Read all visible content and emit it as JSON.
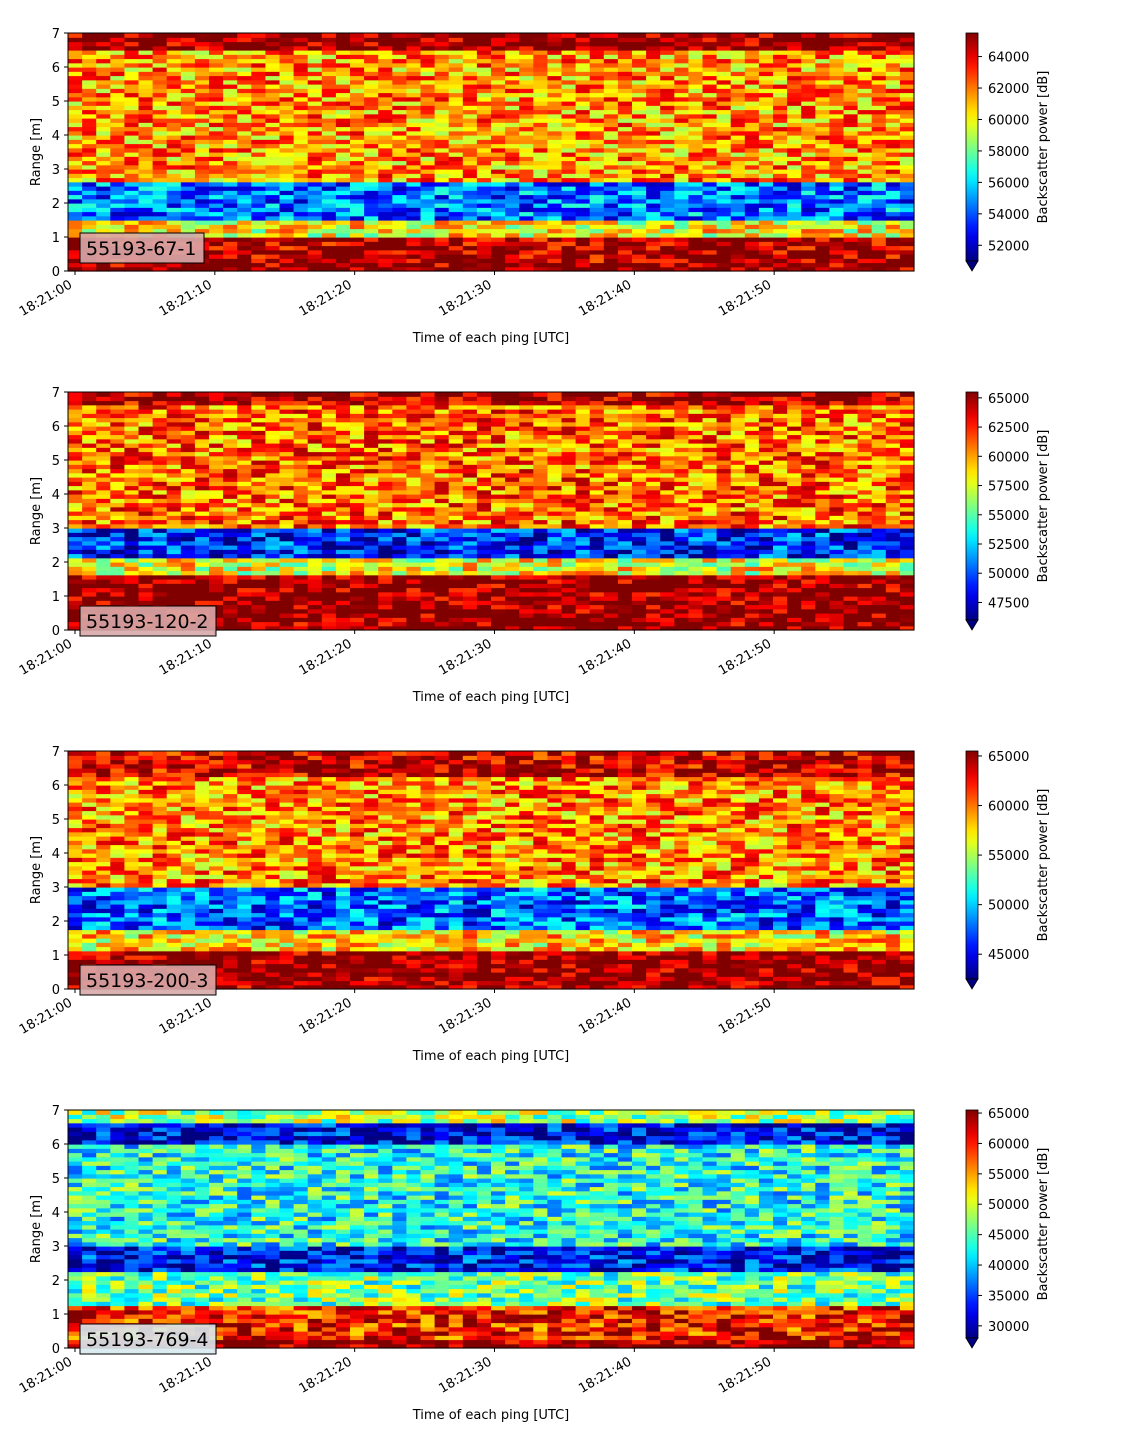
{
  "colormap": "jet",
  "chart_data": [
    {
      "type": "heatmap",
      "label_box": "55193-67-1",
      "label_box_color": "#d8a9a9",
      "xlabel": "Time of each ping [UTC]",
      "ylabel": "Range [m]",
      "colorbar_label": "Backscatter power [dB]",
      "x_range": [
        "18:21:00",
        "18:21:59"
      ],
      "xticks": [
        "18:21:00",
        "18:21:10",
        "18:21:20",
        "18:21:30",
        "18:21:40",
        "18:21:50"
      ],
      "ylim": [
        0,
        7
      ],
      "yticks": [
        "0",
        "1",
        "2",
        "3",
        "4",
        "5",
        "6",
        "7"
      ],
      "clim": [
        51000,
        65500
      ],
      "colorbar_ticks": [
        "52000",
        "54000",
        "56000",
        "58000",
        "60000",
        "62000",
        "64000"
      ],
      "colorbar_extend": "min",
      "range_profile": [
        {
          "range": [
            0.0,
            0.25
          ],
          "value": 65500
        },
        {
          "range": [
            0.25,
            1.0
          ],
          "value": 65000
        },
        {
          "range": [
            1.0,
            1.5
          ],
          "value": 60000
        },
        {
          "range": [
            1.5,
            2.6
          ],
          "value": 54500
        },
        {
          "range": [
            2.6,
            6.5
          ],
          "value": 61500
        },
        {
          "range": [
            6.5,
            7.0
          ],
          "value": 65500
        }
      ]
    },
    {
      "type": "heatmap",
      "label_box": "55193-120-2",
      "label_box_color": "#d8a9a9",
      "xlabel": "Time of each ping [UTC]",
      "ylabel": "Range [m]",
      "colorbar_label": "Backscatter power [dB]",
      "x_range": [
        "18:21:00",
        "18:21:59"
      ],
      "xticks": [
        "18:21:00",
        "18:21:10",
        "18:21:20",
        "18:21:30",
        "18:21:40",
        "18:21:50"
      ],
      "ylim": [
        0,
        7
      ],
      "yticks": [
        "0",
        "1",
        "2",
        "3",
        "4",
        "5",
        "6",
        "7"
      ],
      "clim": [
        46000,
        65500
      ],
      "colorbar_ticks": [
        "47500",
        "50000",
        "52500",
        "55000",
        "57500",
        "60000",
        "62500",
        "65000"
      ],
      "colorbar_extend": "min",
      "range_profile": [
        {
          "range": [
            0.0,
            1.6
          ],
          "value": 65500
        },
        {
          "range": [
            1.6,
            2.1
          ],
          "value": 58000
        },
        {
          "range": [
            2.1,
            3.0
          ],
          "value": 49000
        },
        {
          "range": [
            3.0,
            6.6
          ],
          "value": 61000
        },
        {
          "range": [
            6.6,
            7.0
          ],
          "value": 65000
        }
      ]
    },
    {
      "type": "heatmap",
      "label_box": "55193-200-3",
      "label_box_color": "#d8a9a9",
      "xlabel": "Time of each ping [UTC]",
      "ylabel": "Range [m]",
      "colorbar_label": "Backscatter power [dB]",
      "x_range": [
        "18:21:00",
        "18:21:59"
      ],
      "xticks": [
        "18:21:00",
        "18:21:10",
        "18:21:20",
        "18:21:30",
        "18:21:40",
        "18:21:50"
      ],
      "ylim": [
        0,
        7
      ],
      "yticks": [
        "0",
        "1",
        "2",
        "3",
        "4",
        "5",
        "6",
        "7"
      ],
      "clim": [
        42500,
        65500
      ],
      "colorbar_ticks": [
        "45000",
        "50000",
        "55000",
        "60000",
        "65000"
      ],
      "colorbar_extend": "min",
      "range_profile": [
        {
          "range": [
            0.0,
            1.1
          ],
          "value": 65500
        },
        {
          "range": [
            1.1,
            1.7
          ],
          "value": 57500
        },
        {
          "range": [
            1.7,
            3.0
          ],
          "value": 47500
        },
        {
          "range": [
            3.0,
            6.3
          ],
          "value": 59500
        },
        {
          "range": [
            6.3,
            7.0
          ],
          "value": 64000
        }
      ]
    },
    {
      "type": "heatmap",
      "label_box": "55193-769-4",
      "label_box_color": "#d8e9ee",
      "xlabel": "Time of each ping [UTC]",
      "ylabel": "Range [m]",
      "colorbar_label": "Backscatter power [dB]",
      "x_range": [
        "18:21:00",
        "18:21:59"
      ],
      "xticks": [
        "18:21:00",
        "18:21:10",
        "18:21:20",
        "18:21:30",
        "18:21:40",
        "18:21:50"
      ],
      "ylim": [
        0,
        7
      ],
      "yticks": [
        "0",
        "1",
        "2",
        "3",
        "4",
        "5",
        "6",
        "7"
      ],
      "clim": [
        28000,
        65500
      ],
      "colorbar_ticks": [
        "30000",
        "35000",
        "40000",
        "45000",
        "50000",
        "55000",
        "60000",
        "65000"
      ],
      "colorbar_extend": "min",
      "range_profile": [
        {
          "range": [
            0.0,
            0.25
          ],
          "value": 65500
        },
        {
          "range": [
            0.25,
            1.2
          ],
          "value": 60000
        },
        {
          "range": [
            1.2,
            2.2
          ],
          "value": 46000
        },
        {
          "range": [
            2.2,
            3.0
          ],
          "value": 33000
        },
        {
          "range": [
            3.0,
            6.0
          ],
          "value": 43000
        },
        {
          "range": [
            6.0,
            6.6
          ],
          "value": 32000
        },
        {
          "range": [
            6.6,
            7.0
          ],
          "value": 48000
        }
      ]
    }
  ]
}
